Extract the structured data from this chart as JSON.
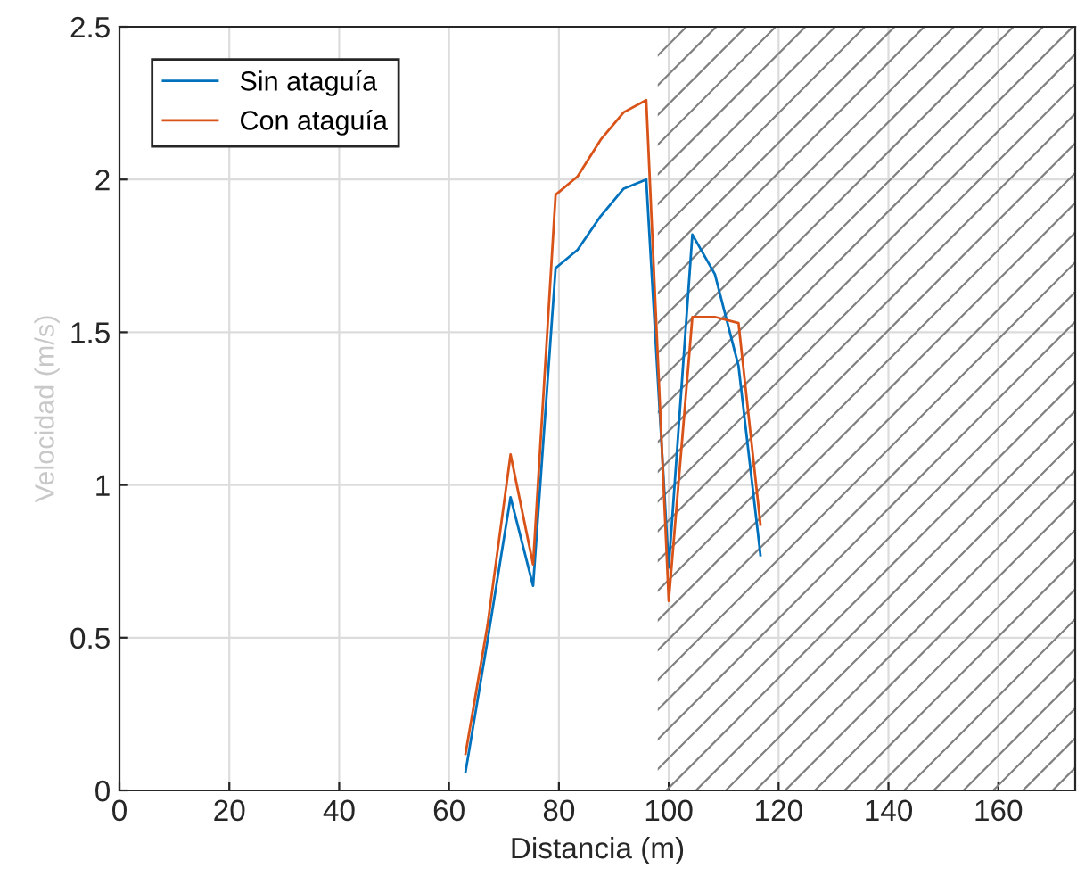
{
  "chart_data": {
    "type": "line",
    "xlabel": "Distancia (m)",
    "ylabel": "Velocidad (m/s)",
    "x": [
      63,
      67,
      71.2,
      75.3,
      79.4,
      83.4,
      87.6,
      91.8,
      95.9,
      100,
      104.3,
      108.4,
      112.7,
      116.7
    ],
    "series": [
      {
        "name": "Sin ataguía",
        "color": "#0072bd",
        "values": [
          0.06,
          0.49,
          0.96,
          0.67,
          1.71,
          1.77,
          1.88,
          1.97,
          2.0,
          0.73,
          1.82,
          1.69,
          1.39,
          0.77
        ]
      },
      {
        "name": "Con ataguía",
        "color": "#d95319",
        "values": [
          0.12,
          0.54,
          1.1,
          0.74,
          1.95,
          2.01,
          2.13,
          2.22,
          2.26,
          0.62,
          1.55,
          1.55,
          1.53,
          0.87
        ]
      }
    ],
    "xlim": [
      0,
      174
    ],
    "ylim": [
      0,
      2.5
    ],
    "xticks": [
      0,
      20,
      40,
      60,
      80,
      100,
      120,
      140,
      160
    ],
    "yticks": [
      0,
      0.5,
      1,
      1.5,
      2,
      2.5
    ],
    "bands": [
      {
        "axis": "x",
        "from": 98,
        "to": 174,
        "color": "#808080"
      }
    ],
    "grid": true,
    "legend": "top left",
    "marker": "none",
    "line_style": "solid"
  }
}
